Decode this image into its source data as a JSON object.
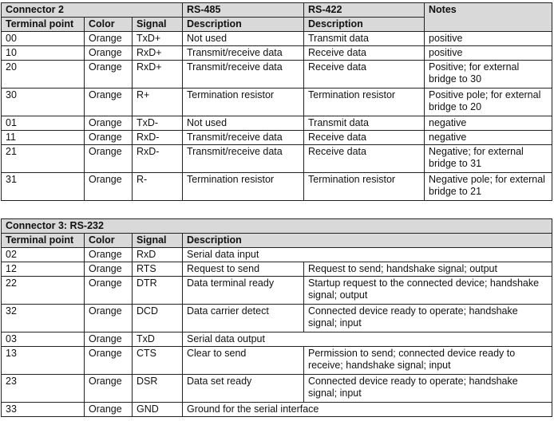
{
  "connector2": {
    "title": "Connector 2",
    "rs485": "RS-485",
    "rs422": "RS-422",
    "notes": "Notes",
    "headers": [
      "Terminal point",
      "Color",
      "Signal",
      "Description",
      "Description"
    ],
    "rows": [
      {
        "tp": "00",
        "color": "Orange",
        "signal": "TxD+",
        "d485": "Not used",
        "d422": "Transmit data",
        "notes": "positive"
      },
      {
        "tp": "10",
        "color": "Orange",
        "signal": "RxD+",
        "d485": "Transmit/receive data",
        "d422": "Receive data",
        "notes": "positive"
      },
      {
        "tp": "20",
        "color": "Orange",
        "signal": "RxD+",
        "d485": "Transmit/receive data",
        "d422": "Receive data",
        "notes": "Positive; for external bridge to 30"
      },
      {
        "tp": "30",
        "color": "Orange",
        "signal": "R+",
        "d485": "Termination resistor",
        "d422": "Termination resistor",
        "notes": "Positive pole; for external bridge to 20"
      },
      {
        "tp": "01",
        "color": "Orange",
        "signal": "TxD-",
        "d485": "Not used",
        "d422": "Transmit data",
        "notes": "negative"
      },
      {
        "tp": "11",
        "color": "Orange",
        "signal": "RxD-",
        "d485": "Transmit/receive data",
        "d422": "Receive data",
        "notes": "negative"
      },
      {
        "tp": "21",
        "color": "Orange",
        "signal": "RxD-",
        "d485": "Transmit/receive data",
        "d422": "Receive data",
        "notes": "Negative; for external bridge to 31"
      },
      {
        "tp": "31",
        "color": "Orange",
        "signal": "R-",
        "d485": "Termination resistor",
        "d422": "Termination resistor",
        "notes": "Negative pole; for external bridge to 21"
      }
    ]
  },
  "connector3": {
    "title": "Connector 3: RS-232",
    "headers": [
      "Terminal point",
      "Color",
      "Signal",
      "Description"
    ],
    "rows": [
      {
        "tp": "02",
        "color": "Orange",
        "signal": "RxD",
        "desc": "Serial data input",
        "detail": ""
      },
      {
        "tp": "12",
        "color": "Orange",
        "signal": "RTS",
        "desc": "Request to send",
        "detail": "Request to send; handshake signal; output"
      },
      {
        "tp": "22",
        "color": "Orange",
        "signal": "DTR",
        "desc": "Data terminal ready",
        "detail": "Startup request to the connected device; handshake signal; output"
      },
      {
        "tp": "32",
        "color": "Orange",
        "signal": "DCD",
        "desc": "Data carrier detect",
        "detail": "Connected device ready to operate; handshake signal; input"
      },
      {
        "tp": "03",
        "color": "Orange",
        "signal": "TxD",
        "desc": "Serial data output",
        "detail": ""
      },
      {
        "tp": "13",
        "color": "Orange",
        "signal": "CTS",
        "desc": "Clear to send",
        "detail": "Permission to send; connected device ready to receive; handshake signal; input"
      },
      {
        "tp": "23",
        "color": "Orange",
        "signal": "DSR",
        "desc": "Data set ready",
        "detail": "Connected device ready to operate; handshake signal; input"
      },
      {
        "tp": "33",
        "color": "Orange",
        "signal": "GND",
        "desc": "Ground for the serial interface",
        "detail": ""
      }
    ]
  }
}
